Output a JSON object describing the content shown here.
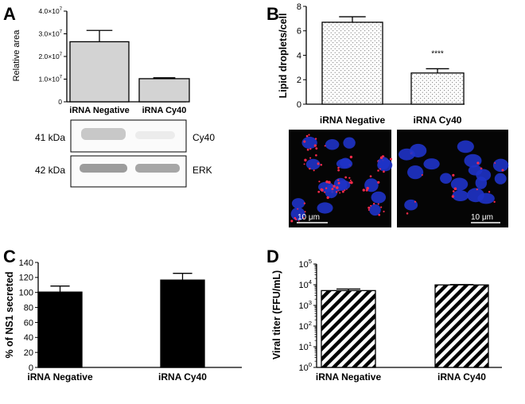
{
  "chart_data": [
    {
      "panel": "A",
      "type": "bar",
      "ylabel": "Relative area",
      "categories": [
        "iRNA Negative",
        "iRNA Cy40"
      ],
      "values": [
        26500000,
        10200000
      ],
      "errors": [
        5000000,
        400000
      ],
      "ylim": [
        0,
        40000000
      ],
      "ticks": [
        {
          "v": 0,
          "base": "0",
          "exp": ""
        },
        {
          "v": 10000000,
          "base": "1.0×10",
          "exp": "7"
        },
        {
          "v": 20000000,
          "base": "2.0×10",
          "exp": "7"
        },
        {
          "v": 30000000,
          "base": "3.0×10",
          "exp": "7"
        },
        {
          "v": 40000000,
          "base": "4.0×10",
          "exp": "7"
        }
      ],
      "fill": "#d3d3d3"
    },
    {
      "panel": "B",
      "type": "bar",
      "ylabel": "Lipid droplets/cell",
      "categories": [
        "iRNA Negative",
        "iRNA Cy40"
      ],
      "values": [
        6.7,
        2.55
      ],
      "errors": [
        0.45,
        0.35
      ],
      "ylim": [
        0,
        8
      ],
      "ticks": [
        {
          "v": 0,
          "base": "0",
          "exp": ""
        },
        {
          "v": 2,
          "base": "2",
          "exp": ""
        },
        {
          "v": 4,
          "base": "4",
          "exp": ""
        },
        {
          "v": 6,
          "base": "6",
          "exp": ""
        },
        {
          "v": 8,
          "base": "8",
          "exp": ""
        }
      ],
      "annotations": [
        {
          "bar": 1,
          "text": "****"
        }
      ],
      "fill": "stipple"
    },
    {
      "panel": "C",
      "type": "bar",
      "ylabel": "% of NS1 secreted",
      "categories": [
        "iRNA Negative",
        "iRNA Cy40"
      ],
      "values": [
        100.5,
        116.5
      ],
      "errors": [
        8,
        9
      ],
      "ylim": [
        0,
        140
      ],
      "ticks": [
        {
          "v": 0,
          "base": "0",
          "exp": ""
        },
        {
          "v": 20,
          "base": "20",
          "exp": ""
        },
        {
          "v": 40,
          "base": "40",
          "exp": ""
        },
        {
          "v": 60,
          "base": "60",
          "exp": ""
        },
        {
          "v": 80,
          "base": "80",
          "exp": ""
        },
        {
          "v": 100,
          "base": "100",
          "exp": ""
        },
        {
          "v": 120,
          "base": "120",
          "exp": ""
        },
        {
          "v": 140,
          "base": "140",
          "exp": ""
        }
      ],
      "fill": "#000000"
    },
    {
      "panel": "D",
      "type": "bar",
      "log_scale": true,
      "ylabel": "Viral titer (FFU/mL)",
      "categories": [
        "iRNA Negative",
        "iRNA Cy40"
      ],
      "values": [
        5200,
        9800
      ],
      "errors": [
        1000,
        400
      ],
      "ylim": [
        1,
        100000
      ],
      "ticks": [
        {
          "v": 1,
          "base": "10",
          "exp": "0"
        },
        {
          "v": 10,
          "base": "10",
          "exp": "1"
        },
        {
          "v": 100,
          "base": "10",
          "exp": "2"
        },
        {
          "v": 1000,
          "base": "10",
          "exp": "3"
        },
        {
          "v": 10000,
          "base": "10",
          "exp": "4"
        },
        {
          "v": 100000,
          "base": "10",
          "exp": "5"
        }
      ],
      "fill": "hatch"
    }
  ],
  "western_blot": {
    "rows": [
      {
        "kda": "41 kDa",
        "protein": "Cy40"
      },
      {
        "kda": "42 kDa",
        "protein": "ERK"
      }
    ]
  },
  "microscopy": {
    "scale_bars": [
      "10 μm",
      "10 μm"
    ],
    "colors": {
      "nuclei": "#1f33c8",
      "droplets": "#ff2a4a"
    }
  }
}
